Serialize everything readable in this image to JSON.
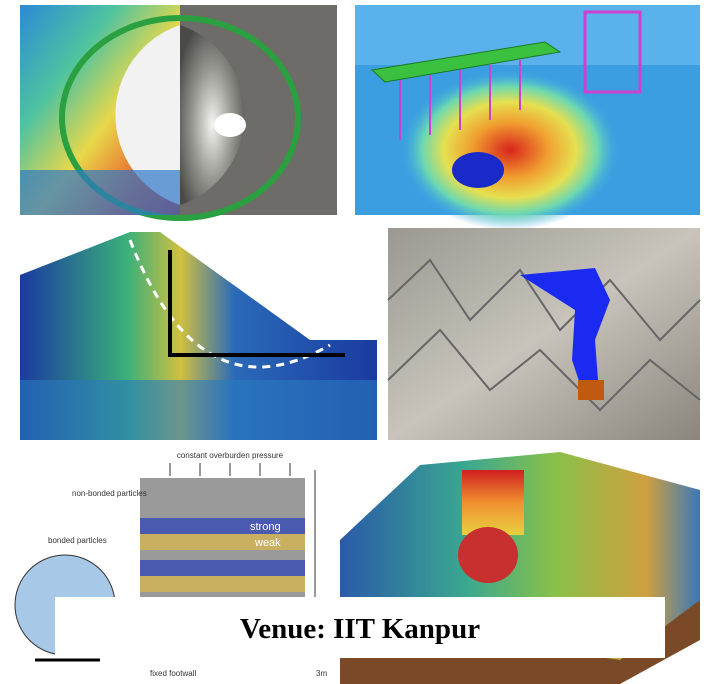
{
  "caption": "Venue: IIT Kanpur",
  "diagram": {
    "top_label": "constant overburden pressure",
    "non_bonded": "non-bonded particles",
    "bonded": "bonded particles",
    "strong": "strong",
    "weak": "weak",
    "footwall": "fixed footwall",
    "scale": "3m"
  }
}
